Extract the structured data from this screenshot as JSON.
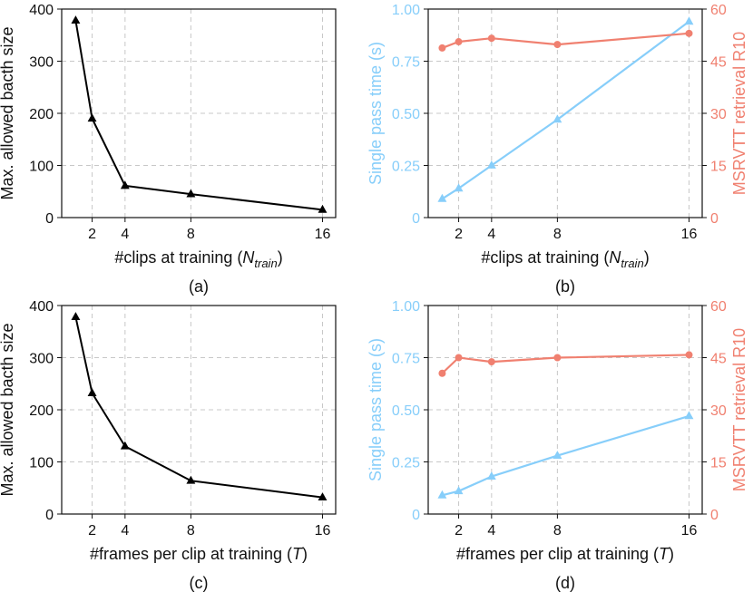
{
  "chart_data": [
    {
      "type": "line",
      "panel": "a",
      "caption": "(a)",
      "xlabel_prefix": "#clips at training (",
      "xlabel_var": "N",
      "xlabel_sub": "train",
      "xlabel_suffix": ")",
      "ylabel": "Max. allowed bacth size",
      "x_ticks": [
        2,
        4,
        8,
        16
      ],
      "xlim": [
        0.15,
        16.8
      ],
      "ylim": [
        0,
        400
      ],
      "y_ticks": [
        0,
        100,
        200,
        300,
        400
      ],
      "grid": true,
      "series": [
        {
          "name": "batch size",
          "color": "#000000",
          "marker": "triangle",
          "x": [
            1,
            2,
            4,
            8,
            16
          ],
          "y": [
            378,
            190,
            61,
            45,
            15
          ]
        }
      ]
    },
    {
      "type": "line",
      "panel": "b",
      "caption": "(b)",
      "xlabel_prefix": "#clips at training (",
      "xlabel_var": "N",
      "xlabel_sub": "train",
      "xlabel_suffix": ")",
      "ylabel": "Single pass time (s)",
      "y2label": "MSRVTT retrieval R10",
      "x_ticks": [
        2,
        4,
        8,
        16
      ],
      "xlim": [
        0.15,
        16.8
      ],
      "ylim": [
        0,
        1.0
      ],
      "y_ticks": [
        "0",
        "0.25",
        "0.50",
        "0.75",
        "1.00"
      ],
      "y2lim": [
        0,
        60
      ],
      "y2_ticks": [
        0,
        15,
        30,
        45,
        60
      ],
      "left_color": "#87CEFA",
      "right_color": "#F08070",
      "grid": true,
      "series": [
        {
          "name": "Single pass time (s)",
          "axis": "left",
          "color": "#87CEFA",
          "marker": "triangle",
          "x": [
            1,
            2,
            4,
            8,
            16
          ],
          "y": [
            0.09,
            0.14,
            0.25,
            0.47,
            0.94
          ]
        },
        {
          "name": "MSRVTT retrieval R10",
          "axis": "right",
          "color": "#F08070",
          "marker": "circle",
          "x": [
            1,
            2,
            4,
            8,
            16
          ],
          "y": [
            48.8,
            50.6,
            51.6,
            49.8,
            53.0
          ]
        }
      ]
    },
    {
      "type": "line",
      "panel": "c",
      "caption": "(c)",
      "xlabel_prefix": "#frames per clip at training (",
      "xlabel_var": "T",
      "xlabel_sub": "",
      "xlabel_suffix": ")",
      "ylabel": "Max. allowed bacth size",
      "x_ticks": [
        2,
        4,
        8,
        16
      ],
      "xlim": [
        0.15,
        16.8
      ],
      "ylim": [
        0,
        400
      ],
      "y_ticks": [
        0,
        100,
        200,
        300,
        400
      ],
      "grid": true,
      "series": [
        {
          "name": "batch size",
          "color": "#000000",
          "marker": "triangle",
          "x": [
            1,
            2,
            4,
            8,
            16
          ],
          "y": [
            378,
            232,
            130,
            64,
            32
          ]
        }
      ]
    },
    {
      "type": "line",
      "panel": "d",
      "caption": "(d)",
      "xlabel_prefix": "#frames per clip at training (",
      "xlabel_var": "T",
      "xlabel_sub": "",
      "xlabel_suffix": ")",
      "ylabel": "Single pass time (s)",
      "y2label": "MSRVTT retrieval R10",
      "x_ticks": [
        2,
        4,
        8,
        16
      ],
      "xlim": [
        0.15,
        16.8
      ],
      "ylim": [
        0,
        1.0
      ],
      "y_ticks": [
        "0",
        "0.25",
        "0.50",
        "0.75",
        "1.00"
      ],
      "y2lim": [
        0,
        60
      ],
      "y2_ticks": [
        0,
        15,
        30,
        45,
        60
      ],
      "left_color": "#87CEFA",
      "right_color": "#F08070",
      "grid": true,
      "series": [
        {
          "name": "Single pass time (s)",
          "axis": "left",
          "color": "#87CEFA",
          "marker": "triangle",
          "x": [
            1,
            2,
            4,
            8,
            16
          ],
          "y": [
            0.09,
            0.11,
            0.18,
            0.28,
            0.47
          ]
        },
        {
          "name": "MSRVTT retrieval R10",
          "axis": "right",
          "color": "#F08070",
          "marker": "circle",
          "x": [
            1,
            2,
            4,
            8,
            16
          ],
          "y": [
            40.5,
            45.0,
            43.8,
            45.0,
            45.8
          ]
        }
      ]
    }
  ]
}
